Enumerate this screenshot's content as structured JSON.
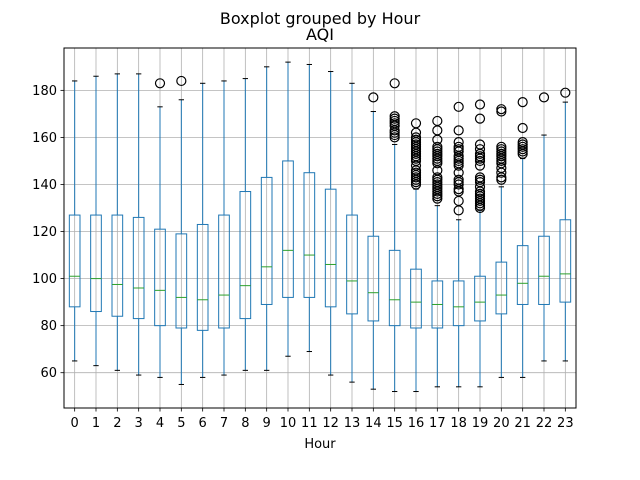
{
  "chart_data": {
    "type": "boxplot",
    "suptitle": "Boxplot grouped by Hour",
    "title": "AQI",
    "xlabel": "Hour",
    "ylabel": "",
    "ylim": [
      45,
      198
    ],
    "yticks": [
      60,
      80,
      100,
      120,
      140,
      160,
      180
    ],
    "grid": true,
    "colors": {
      "box": "#1f77b4",
      "median": "#2ca02c",
      "flier": "#000000",
      "grid": "#b0b0b0"
    },
    "categories": [
      "0",
      "1",
      "2",
      "3",
      "4",
      "5",
      "6",
      "7",
      "8",
      "9",
      "10",
      "11",
      "12",
      "13",
      "14",
      "15",
      "16",
      "17",
      "18",
      "19",
      "20",
      "21",
      "22",
      "23"
    ],
    "boxes": [
      {
        "lo": 65,
        "q1": 88,
        "med": 101,
        "q3": 127,
        "hi": 184,
        "fliers": []
      },
      {
        "lo": 63,
        "q1": 86,
        "med": 100,
        "q3": 127,
        "hi": 186,
        "fliers": []
      },
      {
        "lo": 61,
        "q1": 84,
        "med": 97.5,
        "q3": 127,
        "hi": 187,
        "fliers": []
      },
      {
        "lo": 59,
        "q1": 83,
        "med": 96,
        "q3": 126,
        "hi": 187,
        "fliers": []
      },
      {
        "lo": 58,
        "q1": 80,
        "med": 95,
        "q3": 121,
        "hi": 173,
        "fliers": [
          183
        ]
      },
      {
        "lo": 55,
        "q1": 79,
        "med": 92,
        "q3": 119,
        "hi": 176,
        "fliers": [
          184
        ]
      },
      {
        "lo": 58,
        "q1": 78,
        "med": 91,
        "q3": 123,
        "hi": 183,
        "fliers": []
      },
      {
        "lo": 59,
        "q1": 79,
        "med": 93,
        "q3": 127,
        "hi": 184,
        "fliers": []
      },
      {
        "lo": 61,
        "q1": 83,
        "med": 97,
        "q3": 137,
        "hi": 185,
        "fliers": []
      },
      {
        "lo": 61,
        "q1": 89,
        "med": 105,
        "q3": 143,
        "hi": 190,
        "fliers": []
      },
      {
        "lo": 67,
        "q1": 92,
        "med": 112,
        "q3": 150,
        "hi": 192,
        "fliers": []
      },
      {
        "lo": 69,
        "q1": 92,
        "med": 110,
        "q3": 145,
        "hi": 191,
        "fliers": []
      },
      {
        "lo": 59,
        "q1": 88,
        "med": 106,
        "q3": 138,
        "hi": 188,
        "fliers": []
      },
      {
        "lo": 56,
        "q1": 85,
        "med": 99,
        "q3": 127,
        "hi": 183,
        "fliers": []
      },
      {
        "lo": 53,
        "q1": 82,
        "med": 94,
        "q3": 118,
        "hi": 171,
        "fliers": [
          177
        ]
      },
      {
        "lo": 52,
        "q1": 80,
        "med": 91,
        "q3": 112,
        "hi": 157,
        "fliers": [
          160,
          161,
          162,
          163,
          165,
          166,
          167,
          168,
          169,
          183
        ]
      },
      {
        "lo": 52,
        "q1": 79,
        "med": 90,
        "q3": 104,
        "hi": 138,
        "fliers": [
          140,
          141,
          142,
          143,
          144,
          145,
          146,
          148,
          150,
          151,
          152,
          153,
          154,
          155,
          156,
          157,
          158,
          159,
          160,
          162,
          166
        ]
      },
      {
        "lo": 54,
        "q1": 79,
        "med": 89,
        "q3": 99,
        "hi": 131,
        "fliers": [
          134,
          135,
          136,
          137,
          138,
          139,
          140,
          141,
          142,
          143,
          146,
          149,
          150,
          151,
          152,
          153,
          154,
          155,
          156,
          159,
          163,
          167
        ]
      },
      {
        "lo": 54,
        "q1": 80,
        "med": 88,
        "q3": 99,
        "hi": 125,
        "fliers": [
          129,
          133,
          137,
          138,
          140,
          141,
          142,
          145,
          148,
          149,
          150,
          151,
          152,
          154,
          155,
          156,
          158,
          163,
          173
        ]
      },
      {
        "lo": 54,
        "q1": 82,
        "med": 90,
        "q3": 101,
        "hi": 129,
        "fliers": [
          130,
          131,
          132,
          133,
          134,
          135,
          136,
          137,
          139,
          141,
          142,
          143,
          148,
          150,
          151,
          152,
          153,
          155,
          157,
          168,
          174
        ]
      },
      {
        "lo": 58,
        "q1": 85,
        "med": 93,
        "q3": 107,
        "hi": 139,
        "fliers": [
          142,
          143,
          145,
          147,
          149,
          150,
          151,
          152,
          153,
          154,
          155,
          156,
          171,
          172
        ]
      },
      {
        "lo": 58,
        "q1": 89,
        "med": 98,
        "q3": 114,
        "hi": 151,
        "fliers": [
          153,
          154,
          155,
          156,
          157,
          158,
          164,
          175
        ]
      },
      {
        "lo": 65,
        "q1": 89,
        "med": 101,
        "q3": 118,
        "hi": 161,
        "fliers": [
          177
        ]
      },
      {
        "lo": 65,
        "q1": 90,
        "med": 102,
        "q3": 125,
        "hi": 175,
        "fliers": [
          179
        ]
      }
    ]
  }
}
